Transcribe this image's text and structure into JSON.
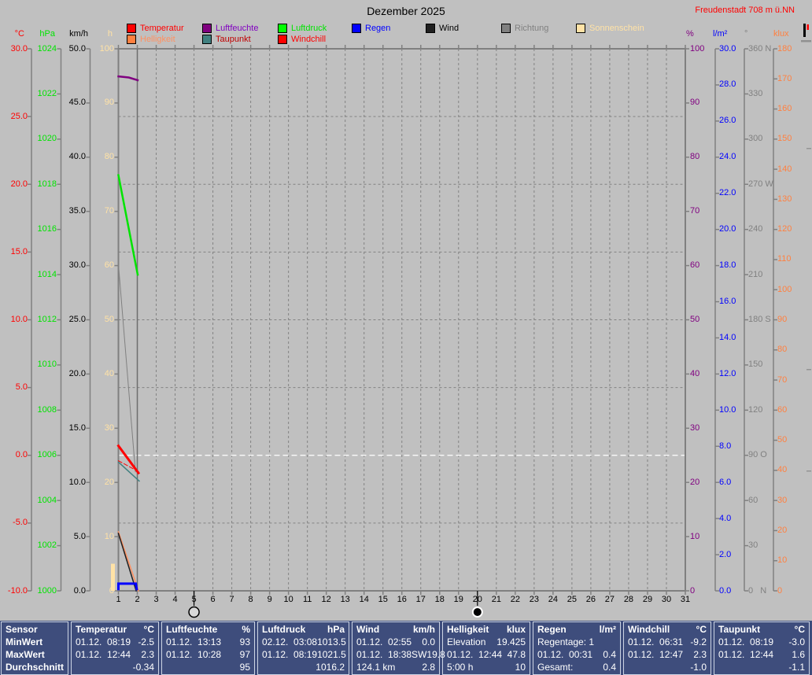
{
  "title": "Dezember 2025",
  "station": "Freudenstadt 708 m ü.NN",
  "legend": {
    "row1": [
      {
        "label": "Temperatur",
        "box": "#ff0000",
        "text": "#ff0000"
      },
      {
        "label": "Luftfeuchte",
        "box": "#800080",
        "text": "#8000c0"
      },
      {
        "label": "Luftdruck",
        "box": "#00ff00",
        "text": "#00e400"
      },
      {
        "label": "Regen",
        "box": "#0000ff",
        "text": "#0000ff"
      },
      {
        "label": "Wind",
        "box": "#202020",
        "text": "#000000"
      },
      {
        "label": "Richtung",
        "box": "#808080",
        "text": "#808080"
      },
      {
        "label": "Sonnenschein",
        "box": "#ffe2a6",
        "text": "#ffe2a6"
      }
    ],
    "row2": [
      {
        "label": "Helligkeit",
        "box": "#ff8040",
        "text": "#ff9060"
      },
      {
        "label": "Taupunkt",
        "box": "#408080",
        "text": "#c00000"
      },
      {
        "label": "Windchill",
        "box": "#ff0000",
        "text": "#ff0000"
      }
    ]
  },
  "chart_data": {
    "type": "line",
    "x_unit": "day_of_month",
    "x_axis": {
      "min_day": 1,
      "max_day": 31,
      "days": [
        "1",
        "2",
        "3",
        "4",
        "5",
        "6",
        "7",
        "8",
        "9",
        "10",
        "11",
        "12",
        "13",
        "14",
        "15",
        "16",
        "17",
        "18",
        "19",
        "20",
        "21",
        "22",
        "23",
        "24",
        "25",
        "26",
        "27",
        "28",
        "29",
        "30",
        "31"
      ],
      "current_day_line": 2
    },
    "moon_markers": [
      {
        "day": 5,
        "phase": "full"
      },
      {
        "day": 20,
        "phase": "new"
      }
    ],
    "axes_left": [
      {
        "id": "temp",
        "header": "°C",
        "color": "#ff0000",
        "min": -10,
        "max": 30,
        "labels": [
          "30.0",
          "25.0",
          "20.0",
          "15.0",
          "10.0",
          "5.0",
          "0.0",
          "-5.0",
          "-10.0"
        ]
      },
      {
        "id": "hpa",
        "header": "hPa",
        "color": "#00e400",
        "min": 1000,
        "max": 1024,
        "labels": [
          "1024",
          "1022",
          "1020",
          "1018",
          "1016",
          "1014",
          "1012",
          "1010",
          "1008",
          "1006",
          "1004",
          "1002",
          "1000"
        ]
      },
      {
        "id": "kmh",
        "header": "km/h",
        "color": "#000000",
        "min": 0,
        "max": 50,
        "labels": [
          "50.0",
          "45.0",
          "40.0",
          "35.0",
          "30.0",
          "25.0",
          "20.0",
          "15.0",
          "10.0",
          "5.0",
          "0.0"
        ]
      },
      {
        "id": "h",
        "header": "h",
        "color": "#ffe2a6",
        "min": 0,
        "max": 100,
        "labels": [
          "100",
          "90",
          "80",
          "70",
          "60",
          "50",
          "40",
          "30",
          "20",
          "10",
          "0"
        ]
      }
    ],
    "axes_right": [
      {
        "id": "percent",
        "header": "%",
        "color": "#800080",
        "min": 0,
        "max": 100,
        "labels": [
          "100",
          "90",
          "80",
          "70",
          "60",
          "50",
          "40",
          "30",
          "20",
          "10",
          "0"
        ]
      },
      {
        "id": "lm2",
        "header": "l/m²",
        "color": "#0000ff",
        "min": 0,
        "max": 30,
        "labels": [
          "30.0",
          "28.0",
          "26.0",
          "24.0",
          "22.0",
          "20.0",
          "18.0",
          "16.0",
          "14.0",
          "12.0",
          "10.0",
          "8.0",
          "6.0",
          "4.0",
          "2.0",
          "0.0"
        ]
      },
      {
        "id": "deg",
        "header": "°",
        "color": "#808080",
        "min": 0,
        "max": 360,
        "labels": [
          "360 N",
          "330",
          "300",
          "270 W",
          "240",
          "210",
          "180 S",
          "150",
          "120",
          "90 O",
          "60",
          "30",
          "0   N"
        ]
      },
      {
        "id": "klux",
        "header": "klux",
        "color": "#ff8040",
        "min": 0,
        "max": 180,
        "labels": [
          "180",
          "170",
          "160",
          "150",
          "140",
          "130",
          "120",
          "110",
          "100",
          "90",
          "80",
          "70",
          "60",
          "50",
          "40",
          "30",
          "20",
          "10",
          "0"
        ]
      }
    ],
    "freezing_line_temp_c": 0,
    "series": [
      {
        "name": "Richtung",
        "axis": "deg",
        "color": "#808080",
        "width": 1,
        "points": [
          [
            1,
            217
          ],
          [
            1.9,
            79
          ]
        ]
      },
      {
        "name": "Luftdruck",
        "axis": "hpa",
        "color": "#00e400",
        "width": 2.5,
        "points": [
          [
            1,
            1018.4
          ],
          [
            2.02,
            1014.0
          ]
        ]
      },
      {
        "name": "Luftfeuchte",
        "axis": "percent",
        "color": "#800080",
        "width": 2.5,
        "points": [
          [
            1,
            94.9
          ],
          [
            1.55,
            94.7
          ],
          [
            2.02,
            94.2
          ]
        ]
      },
      {
        "name": "Helligkeit",
        "axis": "klux",
        "color": "#ff9060",
        "width": 1.5,
        "points": [
          [
            1,
            19.6
          ],
          [
            2.06,
            0
          ]
        ]
      },
      {
        "name": "Wind",
        "axis": "kmh",
        "color": "#202020",
        "width": 1.5,
        "points": [
          [
            1,
            5.3
          ],
          [
            1.94,
            0
          ]
        ]
      },
      {
        "name": "Regen",
        "axis": "lm2",
        "color": "#0000ff",
        "width": 3,
        "points": [
          [
            1,
            0.1
          ],
          [
            1,
            0.4
          ],
          [
            1.92,
            0.4
          ],
          [
            1.97,
            0.1
          ]
        ]
      },
      {
        "name": "Taupunkt",
        "axis": "temp",
        "color": "#408080",
        "width": 1.5,
        "points": [
          [
            1,
            -0.5
          ],
          [
            2.1,
            -1.9
          ]
        ]
      },
      {
        "name": "Windchill",
        "axis": "temp",
        "color": "#ff0000",
        "width": 1,
        "dash": "5,3",
        "points": [
          [
            1,
            -0.4
          ],
          [
            2.06,
            -1.2
          ]
        ]
      },
      {
        "name": "Temperatur",
        "axis": "temp",
        "color": "#ff0000",
        "width": 3,
        "points": [
          [
            1,
            0.7
          ],
          [
            2.06,
            -1.3
          ]
        ]
      }
    ],
    "sunshine_bar": {
      "day": 1,
      "hours": 5,
      "color": "#ffe2a6"
    }
  },
  "table": {
    "sensor": {
      "header": "Sensor",
      "rows": [
        "MinWert",
        "MaxWert",
        "Durchschnitt"
      ]
    },
    "columns": [
      {
        "name": "Temperatur",
        "unit": "°C",
        "rows": [
          [
            "01.12.  08:19",
            "-2.5"
          ],
          [
            "01.12.  12:44",
            "2.3"
          ],
          [
            "",
            "-0.34"
          ]
        ]
      },
      {
        "name": "Luftfeuchte",
        "unit": "%",
        "rows": [
          [
            "01.12.  13:13",
            "93"
          ],
          [
            "01.12.  10:28",
            "97"
          ],
          [
            "",
            "95"
          ]
        ]
      },
      {
        "name": "Luftdruck",
        "unit": "hPa",
        "rows": [
          [
            "02.12.  03:08",
            "1013.5"
          ],
          [
            "01.12.  08:19",
            "1021.5"
          ],
          [
            "",
            "1016.2"
          ]
        ]
      },
      {
        "name": "Wind",
        "unit": "km/h",
        "rows": [
          [
            "01.12.  02:55",
            "0.0"
          ],
          [
            "01.12.  18:38SW",
            "19.8"
          ],
          [
            "124.1 km",
            "2.8"
          ]
        ]
      },
      {
        "name": "Helligkeit",
        "unit": "klux",
        "rows": [
          [
            "Elevation",
            "19.425"
          ],
          [
            "01.12.  12:44",
            "47.8"
          ],
          [
            "5:00 h",
            "10"
          ]
        ]
      },
      {
        "name": "Regen",
        "unit": "l/m²",
        "rows": [
          [
            "Regentage: 1",
            ""
          ],
          [
            "01.12.  00:31",
            "0.4"
          ],
          [
            "Gesamt:",
            "0.4"
          ]
        ]
      },
      {
        "name": "Windchill",
        "unit": "°C",
        "rows": [
          [
            "01.12.  06:31",
            "-9.2"
          ],
          [
            "01.12.  12:47",
            "2.3"
          ],
          [
            "",
            "-1.0"
          ]
        ]
      },
      {
        "name": "Taupunkt",
        "unit": "°C",
        "rows": [
          [
            "01.12.  08:19",
            "-3.0"
          ],
          [
            "01.12.  12:44",
            "1.6"
          ],
          [
            "",
            "-1.1"
          ]
        ]
      }
    ]
  }
}
